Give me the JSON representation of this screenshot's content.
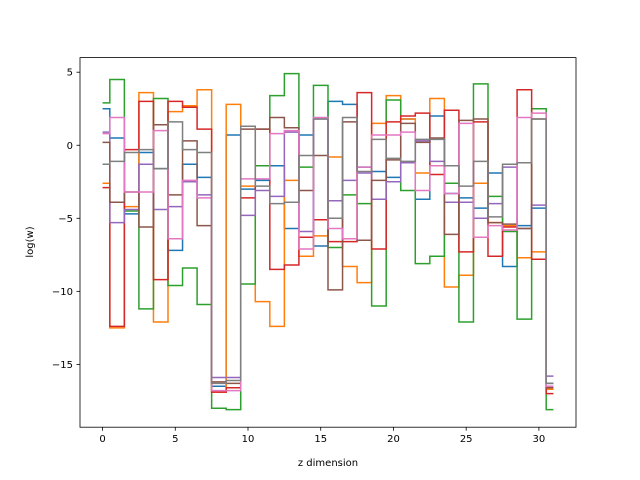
{
  "chart_data": {
    "type": "step",
    "xlabel": "z dimension",
    "ylabel": "log(w)",
    "x": [
      0,
      1,
      2,
      3,
      4,
      5,
      6,
      7,
      8,
      9,
      10,
      11,
      12,
      13,
      14,
      15,
      16,
      17,
      18,
      19,
      20,
      21,
      22,
      23,
      24,
      25,
      26,
      27,
      28,
      29,
      30,
      31
    ],
    "xlim": [
      -1.55,
      32.55
    ],
    "xticks": [
      0,
      5,
      10,
      15,
      20,
      25,
      30
    ],
    "ylim": [
      -19.3,
      6.0
    ],
    "yticks": [
      {
        "value": -15,
        "label": "−15"
      },
      {
        "value": -10,
        "label": "−10"
      },
      {
        "value": -5,
        "label": "−5"
      },
      0,
      5
    ],
    "grid": false,
    "series": [
      {
        "color": "#1f77b4",
        "values": [
          2.5,
          0.5,
          -4.7,
          -0.5,
          -1.6,
          -7.2,
          -1.3,
          -2.2,
          -16.5,
          0.7,
          -3.0,
          -2.4,
          -1.4,
          -5.7,
          0.7,
          -6.9,
          3.0,
          2.8,
          -1.5,
          -1.8,
          -2.2,
          1.8,
          -3.7,
          2.0,
          -3.3,
          -3.6,
          -4.3,
          -1.9,
          -8.3,
          -5.5,
          -4.3,
          -16.3
        ]
      },
      {
        "color": "#ff7f0e",
        "values": [
          -2.6,
          -12.5,
          -4.2,
          3.6,
          -12.1,
          2.3,
          2.7,
          3.8,
          -16.9,
          2.8,
          -2.8,
          -10.7,
          -12.4,
          -2.4,
          -7.6,
          -6.2,
          -0.8,
          -8.3,
          -9.4,
          1.5,
          3.4,
          1.8,
          -1.9,
          3.2,
          -9.7,
          -8.9,
          -2.6,
          -5.3,
          -5.5,
          -7.7,
          -7.3,
          -16.7
        ]
      },
      {
        "color": "#2ca02c",
        "values": [
          2.9,
          4.5,
          -4.5,
          -11.2,
          3.2,
          -9.6,
          -8.4,
          -10.9,
          -18.0,
          -18.1,
          -9.5,
          -1.4,
          3.4,
          4.9,
          -1.5,
          4.1,
          -7.0,
          -3.4,
          -4.0,
          -11.0,
          3.1,
          -3.1,
          -8.1,
          -7.6,
          -2.6,
          -12.1,
          4.2,
          -3.5,
          -5.9,
          -11.9,
          2.5,
          -18.1
        ]
      },
      {
        "color": "#d62728",
        "values": [
          -2.9,
          -12.4,
          -0.3,
          3.0,
          -9.2,
          3.0,
          2.6,
          1.1,
          -16.9,
          -16.6,
          -3.6,
          1.1,
          -8.5,
          -8.2,
          -6.3,
          -5.1,
          -6.6,
          -6.6,
          3.6,
          -7.1,
          1.6,
          2.0,
          2.2,
          -2.0,
          2.4,
          -7.3,
          1.6,
          -7.6,
          -5.6,
          3.8,
          -7.8,
          -17.0
        ]
      },
      {
        "color": "#9467bd",
        "values": [
          0.9,
          -5.3,
          -4.4,
          -1.3,
          -4.4,
          -4.2,
          -2.5,
          -3.4,
          -15.9,
          -15.9,
          -4.8,
          -3.1,
          -3.5,
          0.9,
          -5.9,
          1.8,
          -3.8,
          -2.4,
          -1.9,
          -3.7,
          -2.5,
          -1.2,
          0.3,
          -1.1,
          -3.9,
          -3.9,
          -5.0,
          -4.0,
          -1.5,
          -5.7,
          -4.1,
          -15.8
        ]
      },
      {
        "color": "#8c564b",
        "values": [
          0.2,
          -3.9,
          -3.2,
          -5.6,
          1.4,
          -3.4,
          0.3,
          -5.5,
          -16.2,
          -16.3,
          1.1,
          1.1,
          1.9,
          1.2,
          -3.1,
          -0.7,
          -9.9,
          1.6,
          -6.5,
          -2.4,
          -1.0,
          1.5,
          0.2,
          0.5,
          -6.1,
          1.7,
          1.8,
          -5.3,
          -5.4,
          -5.7,
          1.8,
          -16.6
        ]
      },
      {
        "color": "#e377c2",
        "values": [
          0.8,
          1.9,
          -3.2,
          -3.2,
          1.0,
          -6.4,
          -2.4,
          -3.6,
          -16.8,
          -16.8,
          -2.3,
          -2.3,
          0.8,
          1.0,
          -7.1,
          1.9,
          -5.7,
          -6.4,
          -1.5,
          0.7,
          0.7,
          0.9,
          -3.1,
          -1.4,
          -3.3,
          1.5,
          -6.3,
          -5.5,
          -5.8,
          1.9,
          2.2,
          -16.5
        ]
      },
      {
        "color": "#7f7f7f",
        "values": [
          -1.3,
          -1.1,
          -0.5,
          -0.3,
          -1.6,
          1.6,
          -0.3,
          -0.5,
          -16.3,
          -16.1,
          1.3,
          -2.8,
          -4.0,
          -3.9,
          -0.7,
          1.8,
          -5.0,
          1.9,
          -1.8,
          0.4,
          -0.9,
          -1.1,
          0.4,
          0.4,
          -1.4,
          -2.8,
          -1.1,
          -4.9,
          -1.3,
          -1.2,
          1.8,
          -16.3
        ]
      }
    ]
  }
}
